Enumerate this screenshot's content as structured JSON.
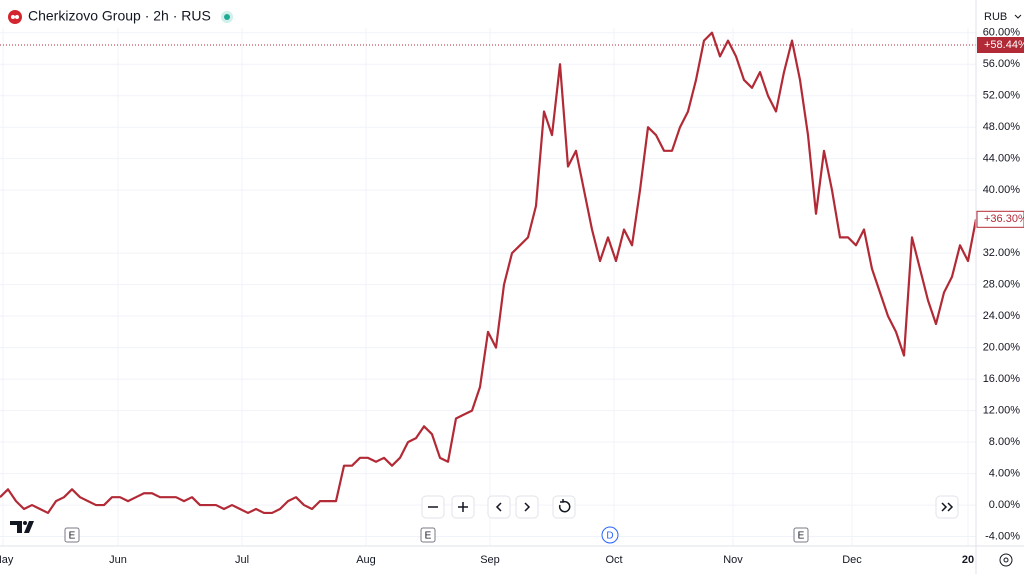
{
  "chart_data": {
    "type": "line",
    "title": "Cherkizovo Group · 2h · RUS",
    "currency": "RUB",
    "x_labels": [
      "May",
      "Jun",
      "Jul",
      "Aug",
      "Sep",
      "Oct",
      "Nov",
      "Dec",
      "20"
    ],
    "event_markers": [
      "E",
      "E",
      "D",
      "E"
    ],
    "series": [
      {
        "name": "Cherkizovo Group",
        "color": "#b22a36",
        "values": [
          1,
          2,
          0.5,
          -0.5,
          0,
          -0.5,
          -1,
          0.5,
          1,
          2,
          1,
          0.5,
          0,
          0,
          1,
          1,
          0.5,
          1,
          1.5,
          1.5,
          1,
          1,
          1,
          0.5,
          1,
          0,
          0,
          0,
          -0.5,
          0,
          -0.5,
          -1,
          -0.5,
          -1,
          -1,
          -0.5,
          0.5,
          1,
          0,
          -0.5,
          0.5,
          0.5,
          0.5,
          5,
          5,
          6,
          6,
          5.5,
          6,
          5,
          6,
          8,
          8.5,
          10,
          9,
          6,
          5.5,
          11,
          11.5,
          12,
          15,
          22,
          20,
          28,
          32,
          33,
          34,
          38,
          50,
          47,
          56,
          43,
          45,
          40,
          35,
          31,
          34,
          31,
          35,
          33,
          40,
          48,
          47,
          45,
          45,
          48,
          50,
          54,
          59,
          60,
          57,
          59,
          57,
          54,
          53,
          55,
          52,
          50,
          55,
          59,
          54,
          47,
          37,
          45,
          40,
          34,
          34,
          33,
          35,
          30,
          27,
          24,
          22,
          19,
          34,
          30,
          26,
          23,
          27,
          29,
          33,
          31,
          36.3
        ]
      }
    ],
    "high_marker": {
      "value": 58.44,
      "label": "+58.44%"
    },
    "last_marker": {
      "value": 36.3,
      "label": "+36.30%"
    },
    "ylim": [
      -5.2,
      60.6
    ],
    "yticks": [
      {
        "value": -4,
        "label": "-4.00%"
      },
      {
        "value": 0,
        "label": "0.00%"
      },
      {
        "value": 4,
        "label": "4.00%"
      },
      {
        "value": 8,
        "label": "8.00%"
      },
      {
        "value": 12,
        "label": "12.00%"
      },
      {
        "value": 16,
        "label": "16.00%"
      },
      {
        "value": 20,
        "label": "20.00%"
      },
      {
        "value": 24,
        "label": "24.00%"
      },
      {
        "value": 28,
        "label": "28.00%"
      },
      {
        "value": 32,
        "label": "32.00%"
      },
      {
        "value": 40,
        "label": "40.00%"
      },
      {
        "value": 44,
        "label": "44.00%"
      },
      {
        "value": 48,
        "label": "48.00%"
      },
      {
        "value": 52,
        "label": "52.00%"
      },
      {
        "value": 56,
        "label": "56.00%"
      },
      {
        "value": 60,
        "label": "60.00%"
      }
    ],
    "grid": true
  }
}
